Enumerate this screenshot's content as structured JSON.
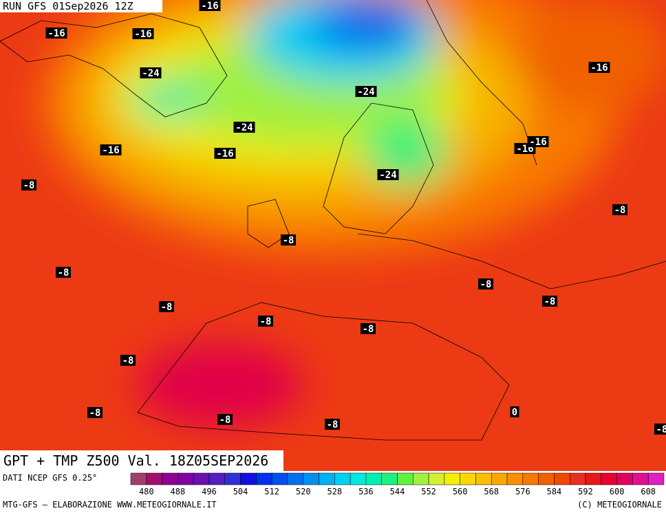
{
  "header": {
    "run": "RUN GFS 01Sep2026 12Z"
  },
  "title": "GPT + TMP Z500 Val. 18Z05SEP2026",
  "contour_labels": [
    "-16",
    "-16",
    "-16",
    "-16",
    "-16",
    "-16",
    "-16",
    "-16",
    "-24",
    "-24",
    "-24",
    "-24",
    "-8",
    "-8",
    "-8",
    "-8",
    "-8",
    "-8",
    "-8",
    "-8",
    "-8",
    "-8",
    "-8",
    "-8",
    "-8",
    "-8",
    "0"
  ],
  "footer": {
    "source": "DATI NCEP GFS 0.25°",
    "credit": "MTG-GFS — ELABORAZIONE WWW.METEOGIORNALE.IT",
    "copyright": "(C) METEOGIORNALE"
  },
  "colorbar": {
    "colors": [
      "#a0406a",
      "#a0106a",
      "#900090",
      "#8000a0",
      "#6a10b0",
      "#5020c0",
      "#3030d0",
      "#1010e0",
      "#0030f0",
      "#0050f0",
      "#0070f0",
      "#0090f0",
      "#00b0f0",
      "#00d0f0",
      "#00e8e0",
      "#00f0b0",
      "#20f080",
      "#60f040",
      "#a0f040",
      "#d0f030",
      "#f0f000",
      "#f8d800",
      "#f8c000",
      "#f8a800",
      "#f89000",
      "#f87800",
      "#f06000",
      "#f04800",
      "#e83020",
      "#e81818",
      "#e80030",
      "#e00060",
      "#e01090",
      "#e020c0"
    ],
    "labels": [
      "480",
      "488",
      "496",
      "504",
      "512",
      "520",
      "528",
      "536",
      "544",
      "552",
      "560",
      "568",
      "576",
      "584",
      "592",
      "600",
      "608"
    ]
  }
}
